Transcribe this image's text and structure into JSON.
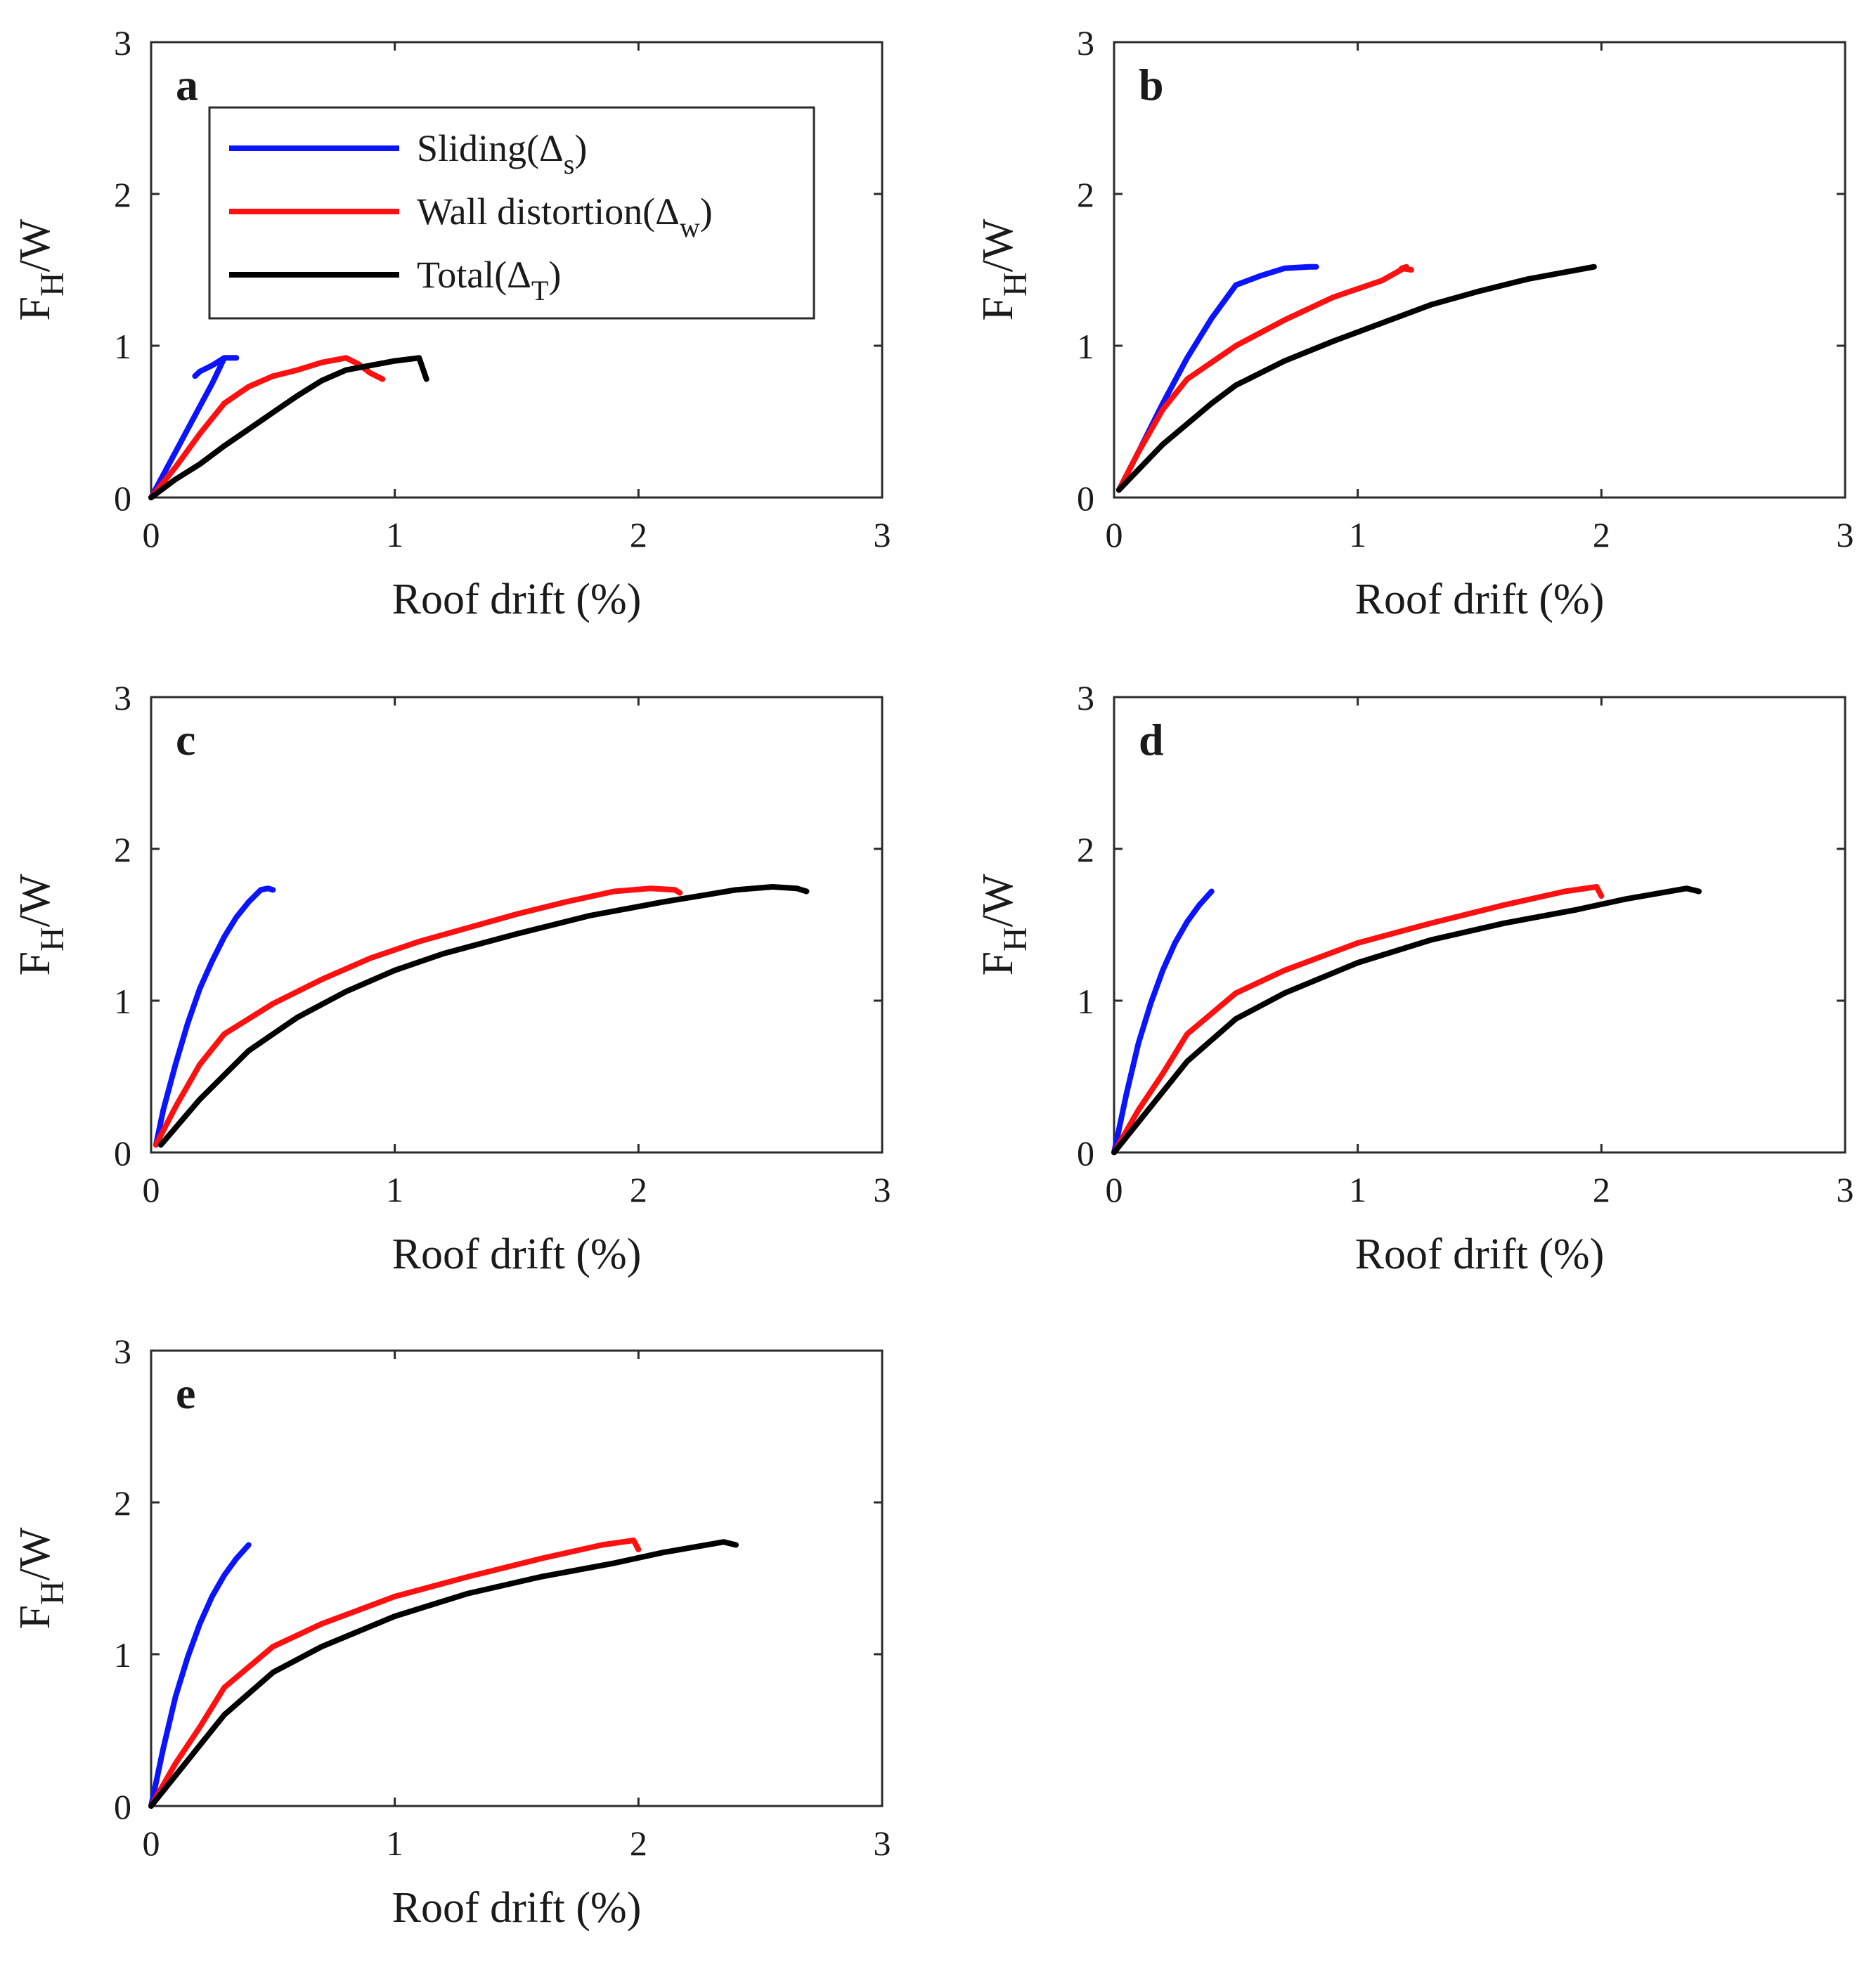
{
  "chart_data": [
    {
      "type": "line",
      "panel": "a",
      "xlabel": "Roof drift (%)",
      "ylabel": {
        "main": "F",
        "sub": "H",
        "tail": "/W"
      },
      "xlim": [
        0,
        3
      ],
      "ylim": [
        0,
        3
      ],
      "xticks": [
        "0",
        "1",
        "2",
        "3"
      ],
      "yticks": [
        "0",
        "1",
        "2",
        "3"
      ],
      "series": [
        {
          "name": "Sliding",
          "color": "#0a14ff",
          "x": [
            0,
            0.05,
            0.1,
            0.15,
            0.2,
            0.25,
            0.28,
            0.3,
            0.35,
            0.3,
            0.25,
            0.2,
            0.18
          ],
          "y": [
            0,
            0.15,
            0.3,
            0.45,
            0.6,
            0.75,
            0.85,
            0.92,
            0.92,
            0.92,
            0.87,
            0.83,
            0.8
          ]
        },
        {
          "name": "Wall distortion",
          "color": "#ff1010",
          "x": [
            0,
            0.1,
            0.2,
            0.3,
            0.4,
            0.5,
            0.6,
            0.7,
            0.8,
            0.85,
            0.9,
            0.95
          ],
          "y": [
            0,
            0.2,
            0.42,
            0.62,
            0.73,
            0.8,
            0.84,
            0.89,
            0.92,
            0.88,
            0.82,
            0.78
          ]
        },
        {
          "name": "Total",
          "color": "#000000",
          "x": [
            0,
            0.1,
            0.2,
            0.3,
            0.4,
            0.5,
            0.6,
            0.7,
            0.8,
            0.9,
            1.0,
            1.1,
            1.13
          ],
          "y": [
            0,
            0.12,
            0.22,
            0.34,
            0.45,
            0.56,
            0.67,
            0.77,
            0.84,
            0.87,
            0.9,
            0.92,
            0.78
          ]
        }
      ]
    },
    {
      "type": "line",
      "panel": "b",
      "xlabel": "Roof drift (%)",
      "ylabel": {
        "main": "F",
        "sub": "H",
        "tail": "/W"
      },
      "xlim": [
        0,
        3
      ],
      "ylim": [
        0,
        3
      ],
      "xticks": [
        "0",
        "1",
        "2",
        "3"
      ],
      "yticks": [
        "0",
        "1",
        "2",
        "3"
      ],
      "series": [
        {
          "name": "Sliding",
          "color": "#0a14ff",
          "x": [
            0.02,
            0.1,
            0.2,
            0.3,
            0.4,
            0.5,
            0.6,
            0.7,
            0.8,
            0.83
          ],
          "y": [
            0.05,
            0.3,
            0.62,
            0.92,
            1.18,
            1.4,
            1.46,
            1.51,
            1.52,
            1.52
          ]
        },
        {
          "name": "Wall distortion",
          "color": "#ff1010",
          "x": [
            0.02,
            0.1,
            0.2,
            0.3,
            0.5,
            0.7,
            0.9,
            1.1,
            1.2,
            1.18,
            1.22
          ],
          "y": [
            0.05,
            0.3,
            0.58,
            0.78,
            1.0,
            1.17,
            1.32,
            1.43,
            1.52,
            1.51,
            1.5
          ]
        },
        {
          "name": "Total",
          "color": "#000000",
          "x": [
            0.02,
            0.2,
            0.4,
            0.5,
            0.7,
            0.9,
            1.1,
            1.3,
            1.5,
            1.7,
            1.97
          ],
          "y": [
            0.05,
            0.35,
            0.62,
            0.74,
            0.9,
            1.03,
            1.15,
            1.27,
            1.36,
            1.44,
            1.52
          ]
        }
      ]
    },
    {
      "type": "line",
      "panel": "c",
      "xlabel": "Roof drift (%)",
      "ylabel": {
        "main": "F",
        "sub": "H",
        "tail": "/W"
      },
      "xlim": [
        0,
        3
      ],
      "ylim": [
        0,
        3
      ],
      "xticks": [
        "0",
        "1",
        "2",
        "3"
      ],
      "yticks": [
        "0",
        "1",
        "2",
        "3"
      ],
      "series": [
        {
          "name": "Sliding",
          "color": "#0a14ff",
          "x": [
            0.02,
            0.05,
            0.1,
            0.15,
            0.2,
            0.25,
            0.3,
            0.35,
            0.4,
            0.45,
            0.48,
            0.5
          ],
          "y": [
            0.05,
            0.28,
            0.58,
            0.85,
            1.08,
            1.26,
            1.42,
            1.55,
            1.65,
            1.73,
            1.74,
            1.73
          ]
        },
        {
          "name": "Wall distortion",
          "color": "#ff1010",
          "x": [
            0.02,
            0.1,
            0.2,
            0.3,
            0.5,
            0.7,
            0.9,
            1.1,
            1.3,
            1.5,
            1.7,
            1.9,
            2.05,
            2.15,
            2.17
          ],
          "y": [
            0.05,
            0.3,
            0.58,
            0.78,
            0.98,
            1.14,
            1.28,
            1.39,
            1.48,
            1.57,
            1.65,
            1.72,
            1.74,
            1.73,
            1.71
          ]
        },
        {
          "name": "Total",
          "color": "#000000",
          "x": [
            0.04,
            0.2,
            0.4,
            0.6,
            0.8,
            1.0,
            1.2,
            1.5,
            1.8,
            2.1,
            2.4,
            2.55,
            2.65,
            2.69
          ],
          "y": [
            0.05,
            0.35,
            0.67,
            0.89,
            1.06,
            1.2,
            1.31,
            1.44,
            1.56,
            1.65,
            1.73,
            1.75,
            1.74,
            1.72
          ]
        }
      ]
    },
    {
      "type": "line",
      "panel": "d",
      "xlabel": "Roof drift (%)",
      "ylabel": {
        "main": "F",
        "sub": "H",
        "tail": "/W"
      },
      "xlim": [
        0,
        3
      ],
      "ylim": [
        0,
        3
      ],
      "xticks": [
        "0",
        "1",
        "2",
        "3"
      ],
      "yticks": [
        "0",
        "1",
        "2",
        "3"
      ],
      "series": [
        {
          "name": "Sliding",
          "color": "#0a14ff",
          "x": [
            0,
            0.05,
            0.1,
            0.15,
            0.2,
            0.25,
            0.3,
            0.35,
            0.4
          ],
          "y": [
            0,
            0.38,
            0.72,
            0.98,
            1.2,
            1.38,
            1.52,
            1.63,
            1.72
          ]
        },
        {
          "name": "Wall distortion",
          "color": "#ff1010",
          "x": [
            0,
            0.1,
            0.2,
            0.3,
            0.5,
            0.7,
            1.0,
            1.3,
            1.6,
            1.85,
            1.98,
            2.0
          ],
          "y": [
            0,
            0.28,
            0.52,
            0.78,
            1.05,
            1.2,
            1.38,
            1.51,
            1.63,
            1.72,
            1.75,
            1.69
          ]
        },
        {
          "name": "Total",
          "color": "#000000",
          "x": [
            0,
            0.1,
            0.2,
            0.3,
            0.5,
            0.7,
            1.0,
            1.3,
            1.6,
            1.9,
            2.1,
            2.35,
            2.4
          ],
          "y": [
            0,
            0.2,
            0.4,
            0.6,
            0.88,
            1.05,
            1.25,
            1.4,
            1.51,
            1.6,
            1.67,
            1.74,
            1.72
          ]
        }
      ]
    },
    {
      "type": "line",
      "panel": "e",
      "xlabel": "Roof drift (%)",
      "ylabel": {
        "main": "F",
        "sub": "H",
        "tail": "/W"
      },
      "xlim": [
        0,
        3
      ],
      "ylim": [
        0,
        3
      ],
      "xticks": [
        "0",
        "1",
        "2",
        "3"
      ],
      "yticks": [
        "0",
        "1",
        "2",
        "3"
      ],
      "series": [
        {
          "name": "Sliding",
          "color": "#0a14ff",
          "x": [
            0,
            0.05,
            0.1,
            0.15,
            0.2,
            0.25,
            0.3,
            0.35,
            0.4
          ],
          "y": [
            0,
            0.38,
            0.72,
            0.98,
            1.2,
            1.38,
            1.52,
            1.63,
            1.72
          ]
        },
        {
          "name": "Wall distortion",
          "color": "#ff1010",
          "x": [
            0,
            0.1,
            0.2,
            0.3,
            0.5,
            0.7,
            1.0,
            1.3,
            1.6,
            1.85,
            1.98,
            2.0
          ],
          "y": [
            0,
            0.28,
            0.52,
            0.78,
            1.05,
            1.2,
            1.38,
            1.51,
            1.63,
            1.72,
            1.75,
            1.69
          ]
        },
        {
          "name": "Total",
          "color": "#000000",
          "x": [
            0,
            0.1,
            0.2,
            0.3,
            0.5,
            0.7,
            1.0,
            1.3,
            1.6,
            1.9,
            2.1,
            2.35,
            2.4
          ],
          "y": [
            0,
            0.2,
            0.4,
            0.6,
            0.88,
            1.05,
            1.25,
            1.4,
            1.51,
            1.6,
            1.67,
            1.74,
            1.72
          ]
        }
      ]
    }
  ],
  "legend": {
    "placement": "top-left of panel a",
    "items": [
      {
        "label": "Sliding(Δ",
        "sub": "s",
        "tail": ")",
        "color": "#0a14ff"
      },
      {
        "label": "Wall distortion(Δ",
        "sub": "w",
        "tail": ")",
        "color": "#ff1010"
      },
      {
        "label": "Total(Δ",
        "sub": "T",
        "tail": ")",
        "color": "#000000"
      }
    ]
  }
}
